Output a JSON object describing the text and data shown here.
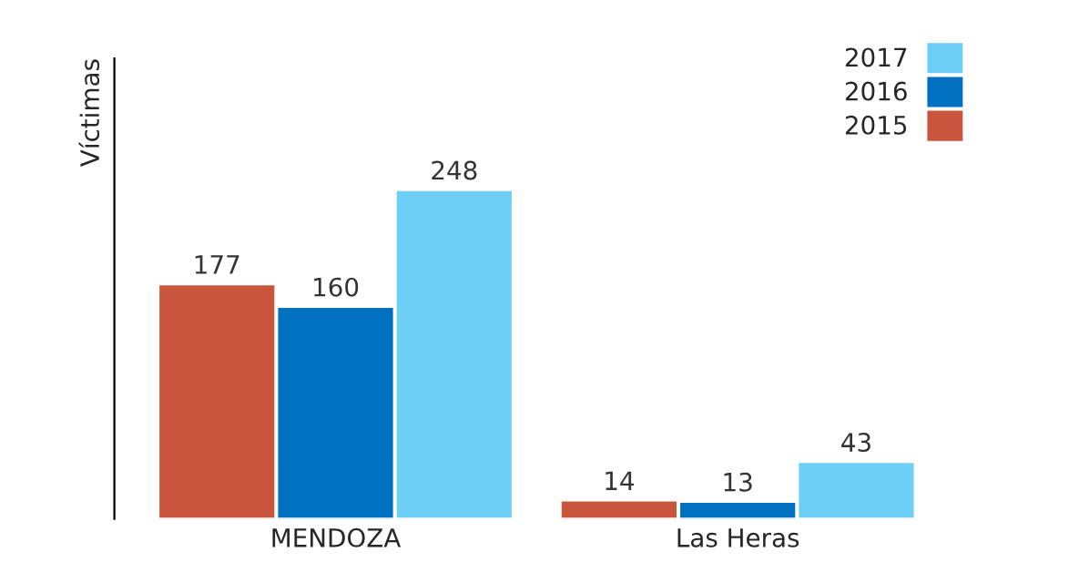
{
  "chart_data": {
    "type": "bar",
    "ylabel": "Víctimas",
    "categories": [
      "MENDOZA",
      "Las Heras"
    ],
    "series": [
      {
        "name": "2015",
        "color": "#c9553c",
        "values": [
          177,
          14
        ]
      },
      {
        "name": "2016",
        "color": "#0070c0",
        "values": [
          160,
          13
        ]
      },
      {
        "name": "2017",
        "color": "#6dcff6",
        "values": [
          248,
          43
        ]
      }
    ],
    "data_labels": true,
    "legend": "top right",
    "grid": false,
    "tick_labels": "x"
  }
}
